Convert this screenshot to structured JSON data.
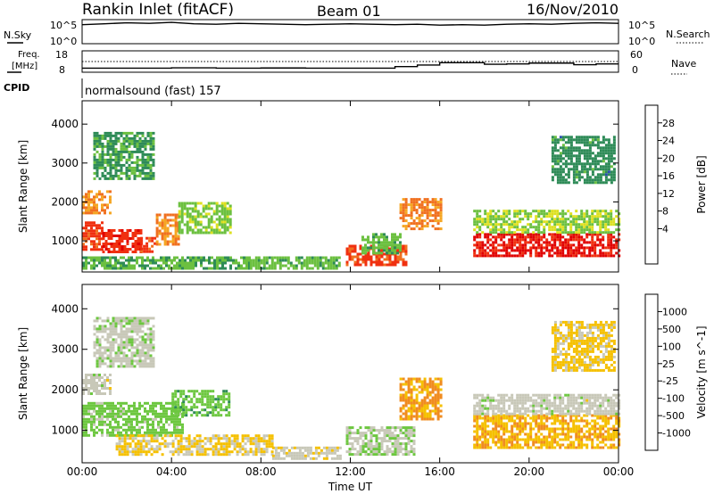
{
  "header": {
    "title": "Rankin Inlet (fitACF)",
    "beam": "Beam 01",
    "date": "16/Nov/2010"
  },
  "panels": {
    "nsky": {
      "label": "N.Sky",
      "tick_top": "10^5",
      "tick_bottom": "10^0",
      "right_label": "N.Search",
      "right_tick_top": "10^5",
      "right_tick_bottom": "10^0"
    },
    "freq": {
      "label_line1": "Freq.",
      "label_line2": "[MHz]",
      "tick_top": "18",
      "tick_bottom": "8",
      "right_label": "Nave",
      "right_tick_top": "60",
      "right_tick_bottom": "0"
    },
    "cpid": {
      "label": "CPID",
      "text": "normalsound (fast) 157"
    }
  },
  "colors": {
    "power_scale": [
      "#1010ee",
      "#2a4eb0",
      "#2e8b57",
      "#6cc040",
      "#dde020",
      "#f5a623",
      "#f07020",
      "#f03010",
      "#e00000"
    ],
    "velocity_scale": [
      "#1a1adc",
      "#2448b8",
      "#2e8b57",
      "#6dc740",
      "#c8c8b8",
      "#f5c000",
      "#f08c20",
      "#f05010",
      "#e00000"
    ]
  },
  "chart_data": [
    {
      "type": "heatmap",
      "title": "",
      "quantity": "Power",
      "ylabel": "Slant Range [km]",
      "xlabel": "Time UT",
      "xlim_hours": [
        0,
        24
      ],
      "ylim_km": [
        200,
        4600
      ],
      "x_ticks": [
        "00:00",
        "04:00",
        "08:00",
        "12:00",
        "16:00",
        "20:00",
        "00:00"
      ],
      "y_ticks": [
        "1000",
        "2000",
        "3000",
        "4000"
      ],
      "colorbar_label": "Power [dB]",
      "colorbar_ticks": [
        "28",
        "24",
        "20",
        "16",
        "12",
        "8",
        "4"
      ],
      "clim": [
        0,
        32
      ],
      "regions": [
        {
          "t": [
            0.0,
            0.9
          ],
          "r": [
            800,
            1500
          ],
          "value": 26
        },
        {
          "t": [
            0.9,
            2.6
          ],
          "r": [
            700,
            1300
          ],
          "value": 28
        },
        {
          "t": [
            2.6,
            3.3
          ],
          "r": [
            700,
            1100
          ],
          "value": 26
        },
        {
          "t": [
            3.3,
            4.3
          ],
          "r": [
            900,
            1700
          ],
          "value": 22
        },
        {
          "t": [
            4.3,
            6.6
          ],
          "r": [
            1200,
            2000
          ],
          "value": 13
        },
        {
          "t": [
            0.5,
            3.2
          ],
          "r": [
            2600,
            3800
          ],
          "value": 10
        },
        {
          "t": [
            0.0,
            1.2
          ],
          "r": [
            1700,
            2300
          ],
          "value": 21
        },
        {
          "t": [
            0.0,
            7.5
          ],
          "r": [
            300,
            600
          ],
          "value": 11
        },
        {
          "t": [
            7.5,
            11.5
          ],
          "r": [
            300,
            600
          ],
          "value": 12
        },
        {
          "t": [
            11.8,
            14.5
          ],
          "r": [
            400,
            900
          ],
          "value": 26
        },
        {
          "t": [
            12.5,
            14.2
          ],
          "r": [
            700,
            1200
          ],
          "value": 12
        },
        {
          "t": [
            14.2,
            16.0
          ],
          "r": [
            1300,
            2100
          ],
          "value": 22
        },
        {
          "t": [
            17.5,
            24.0
          ],
          "r": [
            600,
            1200
          ],
          "value": 29
        },
        {
          "t": [
            17.5,
            24.0
          ],
          "r": [
            1200,
            1800
          ],
          "value": 14
        },
        {
          "t": [
            21.0,
            23.8
          ],
          "r": [
            2500,
            3700
          ],
          "value": 9
        }
      ]
    },
    {
      "type": "heatmap",
      "title": "",
      "quantity": "Velocity",
      "ylabel": "Slant Range [km]",
      "xlabel": "Time UT",
      "xlim_hours": [
        0,
        24
      ],
      "ylim_km": [
        200,
        4600
      ],
      "x_ticks": [
        "00:00",
        "04:00",
        "08:00",
        "12:00",
        "16:00",
        "20:00",
        "00:00"
      ],
      "y_ticks": [
        "1000",
        "2000",
        "3000",
        "4000"
      ],
      "colorbar_label": "Velocity [m s^-1]",
      "colorbar_ticks": [
        "1000",
        "500",
        "100",
        "25",
        "-25",
        "-100",
        "-500",
        "-1000"
      ],
      "clim": [
        -1200,
        1200
      ],
      "regions": [
        {
          "t": [
            0.0,
            4.5
          ],
          "r": [
            900,
            1700
          ],
          "value": 250
        },
        {
          "t": [
            0.0,
            1.2
          ],
          "r": [
            1900,
            2400
          ],
          "value": 0
        },
        {
          "t": [
            4.0,
            6.6
          ],
          "r": [
            1400,
            2000
          ],
          "value": 300
        },
        {
          "t": [
            0.5,
            3.2
          ],
          "r": [
            2600,
            3800
          ],
          "value": 60
        },
        {
          "t": [
            1.5,
            8.5
          ],
          "r": [
            400,
            900
          ],
          "value": -150
        },
        {
          "t": [
            8.5,
            11.5
          ],
          "r": [
            300,
            600
          ],
          "value": -60
        },
        {
          "t": [
            11.8,
            14.8
          ],
          "r": [
            400,
            1100
          ],
          "value": 80
        },
        {
          "t": [
            14.2,
            16.0
          ],
          "r": [
            1300,
            2300
          ],
          "value": -450
        },
        {
          "t": [
            17.5,
            24.0
          ],
          "r": [
            600,
            1400
          ],
          "value": -350
        },
        {
          "t": [
            17.5,
            24.0
          ],
          "r": [
            1400,
            1900
          ],
          "value": 10
        },
        {
          "t": [
            21.0,
            23.8
          ],
          "r": [
            2500,
            3700
          ],
          "value": -200
        }
      ]
    }
  ],
  "nsky_series": [
    3.9,
    4.1,
    4.3,
    4.2,
    4.4,
    4.1,
    4.0,
    4.2,
    4.1,
    4.0,
    3.9,
    4.0,
    4.1,
    4.0,
    3.9,
    4.0,
    3.8,
    3.9,
    3.8,
    4.0,
    4.1,
    4.0,
    4.2,
    4.3,
    4.2
  ],
  "freq_series": {
    "hours": [
      0,
      4,
      6,
      8,
      10,
      11,
      12,
      13,
      14,
      15,
      16,
      17,
      18,
      19,
      20,
      21,
      22,
      23,
      24
    ],
    "mhz": [
      9.6,
      9.8,
      9.6,
      9.7,
      9.6,
      9.6,
      9.6,
      9.6,
      10.4,
      11.2,
      12.4,
      12.4,
      11.6,
      11.8,
      12.2,
      12.2,
      11.4,
      11.8,
      11.8
    ]
  },
  "nave_value": 30
}
